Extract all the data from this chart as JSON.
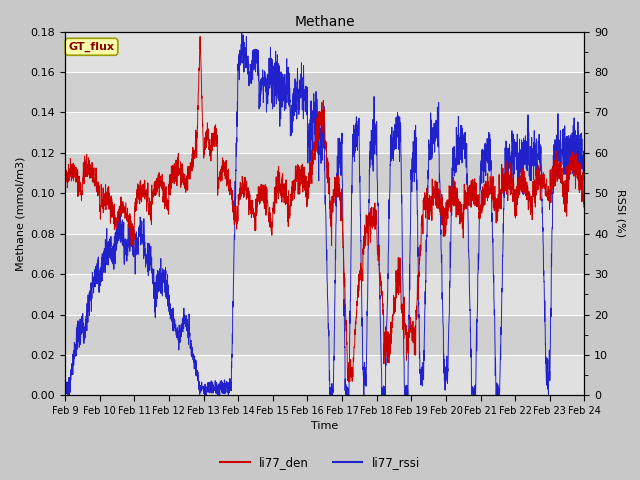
{
  "title": "Methane",
  "xlabel": "Time",
  "ylabel_left": "Methane (mmol/m3)",
  "ylabel_right": "RSSI (%)",
  "legend_label1": "li77_den",
  "legend_label2": "li77_rssi",
  "color1": "#cc0000",
  "color2": "#2222cc",
  "annotation_text": "GT_flux",
  "annotation_bg": "#ffffaa",
  "annotation_border": "#999900",
  "ylim_left": [
    0.0,
    0.18
  ],
  "ylim_right": [
    0,
    90
  ],
  "yticks_left": [
    0.0,
    0.02,
    0.04,
    0.06,
    0.08,
    0.1,
    0.12,
    0.14,
    0.16,
    0.18
  ],
  "yticks_right": [
    0,
    10,
    20,
    30,
    40,
    50,
    60,
    70,
    80,
    90
  ],
  "fig_bg": "#c8c8c8",
  "plot_bg": "#d0d0d0",
  "band_color_light": "#e0e0e0",
  "grid_color": "#ffffff",
  "n_points": 3000,
  "x_start": 9.0,
  "x_end": 24.0,
  "x_ticks": [
    9,
    10,
    11,
    12,
    13,
    14,
    15,
    16,
    17,
    18,
    19,
    20,
    21,
    22,
    23,
    24
  ],
  "x_tick_labels": [
    "Feb 9",
    "Feb 10",
    "Feb 11",
    "Feb 12",
    "Feb 13",
    "Feb 14",
    "Feb 15",
    "Feb 16",
    "Feb 17",
    "Feb 18",
    "Feb 19",
    "Feb 20",
    "Feb 21",
    "Feb 22",
    "Feb 23",
    "Feb 24"
  ]
}
